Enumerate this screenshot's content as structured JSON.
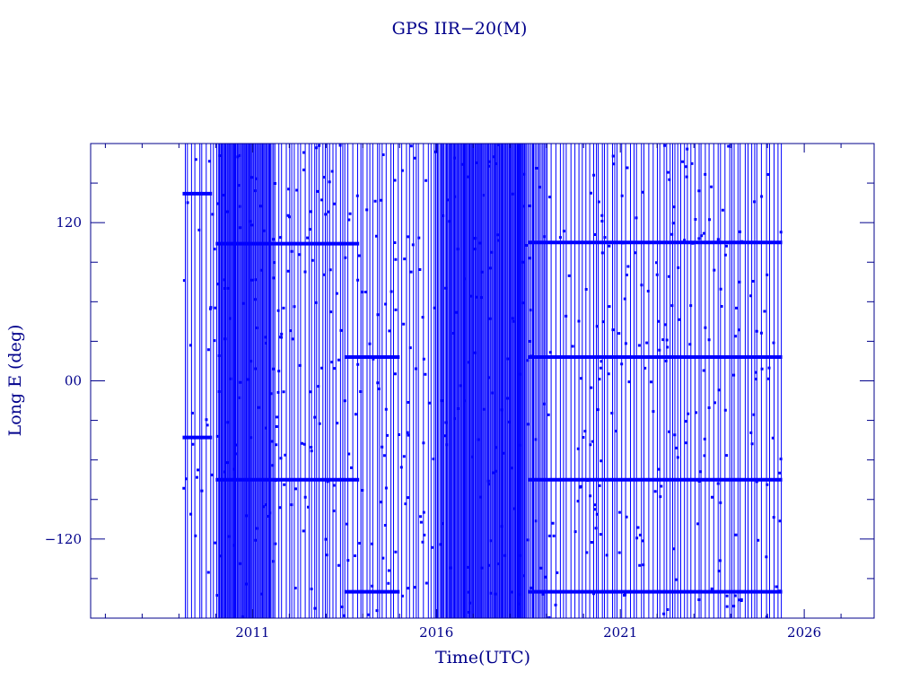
{
  "chart_data": {
    "type": "line",
    "title": "GPS IIR−20(M)",
    "xlabel": "Time(UTC)",
    "ylabel": "Long E (deg)",
    "x_ticks": [
      2011,
      2016,
      2021,
      2026
    ],
    "x_tick_labels": [
      "2011",
      "2016",
      "2021",
      "2026"
    ],
    "xlim": [
      2006.6,
      2027.9
    ],
    "y_ticks": [
      -120,
      0,
      120
    ],
    "y_tick_labels": [
      "−120",
      "00",
      "120"
    ],
    "ylim": [
      -180,
      180
    ],
    "grid": false,
    "colors": {
      "series": "#0000ff",
      "axes": "#00008b",
      "text": "#00008b"
    },
    "series": [
      {
        "x_range": [
          2009.1,
          2025.4
        ],
        "y_range": [
          -180,
          180
        ],
        "description_bands": [
          {
            "x": [
              2009.1,
              2009.9
            ],
            "y": 142
          },
          {
            "x": [
              2009.1,
              2009.9
            ],
            "y": -43
          },
          {
            "x": [
              2010.0,
              2013.9
            ],
            "y": 104
          },
          {
            "x": [
              2010.0,
              2013.9
            ],
            "y": -75
          },
          {
            "x": [
              2013.5,
              2015.0
            ],
            "y": 18
          },
          {
            "x": [
              2013.5,
              2015.0
            ],
            "y": -160
          },
          {
            "x": [
              2018.5,
              2025.4
            ],
            "y": 105
          },
          {
            "x": [
              2018.5,
              2025.4
            ],
            "y": 18
          },
          {
            "x": [
              2018.5,
              2025.4
            ],
            "y": -75
          },
          {
            "x": [
              2018.5,
              2025.4
            ],
            "y": -160
          }
        ]
      }
    ]
  }
}
